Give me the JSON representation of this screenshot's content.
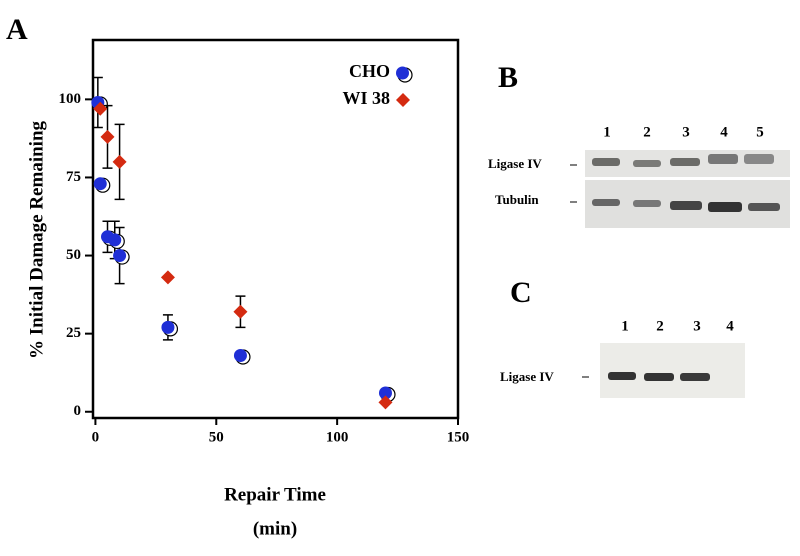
{
  "chart_data": {
    "type": "scatter",
    "panel_label": "A",
    "ylabel": "% Initial Damage Remaining",
    "xlabel": [
      "Repair Time",
      "(min)"
    ],
    "xlim": [
      -1,
      150
    ],
    "xticks": [
      0,
      50,
      100,
      150
    ],
    "ylim": [
      -2,
      119
    ],
    "yticks": [
      0,
      25,
      50,
      75,
      100
    ],
    "legend": "top right",
    "series": [
      {
        "name": "CHO",
        "color": "#1f2fd6",
        "marker": "circle",
        "x": [
          1,
          2,
          5,
          8,
          10,
          30,
          60,
          120
        ],
        "values": [
          99,
          73,
          56,
          55,
          50,
          27,
          18,
          6
        ],
        "errors": [
          8,
          null,
          5,
          6,
          9,
          4,
          null,
          null
        ]
      },
      {
        "name": "WI 38",
        "color": "#d42a10",
        "marker": "diamond",
        "x": [
          2,
          5,
          10,
          30,
          60,
          120
        ],
        "values": [
          97,
          88,
          80,
          43,
          32,
          3
        ],
        "errors": [
          null,
          10,
          12,
          null,
          5,
          null
        ]
      }
    ]
  },
  "blots": {
    "B": {
      "panel_label": "B",
      "lanes": [
        "1",
        "2",
        "3",
        "4",
        "5"
      ],
      "rows": [
        "Ligase IV",
        "Tubulin"
      ]
    },
    "C": {
      "panel_label": "C",
      "lanes": [
        "1",
        "2",
        "3",
        "4"
      ],
      "rows": [
        "Ligase IV"
      ]
    }
  }
}
